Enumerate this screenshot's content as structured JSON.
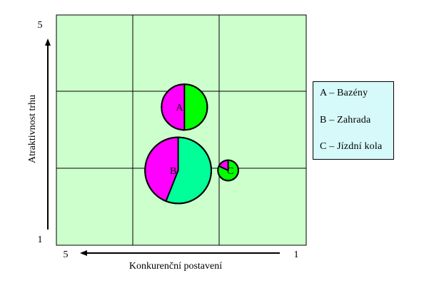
{
  "chart_data": {
    "type": "bubble-pie",
    "title": "",
    "xlabel": "Konkurenční postavení",
    "ylabel": "Atraktivnost trhu",
    "x_axis": {
      "start_label": "5",
      "end_label": "1",
      "direction": "decreasing-to-right"
    },
    "y_axis": {
      "start_label": "1",
      "end_label": "5",
      "direction": "increasing-up"
    },
    "grid": "3x3",
    "colors": {
      "plot_background": "#ccffcc",
      "pie_magenta": "#ff00ff",
      "pie_green_a": "#00ff00",
      "pie_green_b": "#00ff99",
      "pie_green_c": "#00ff00",
      "legend_background": "#d6fafa"
    },
    "bubbles": [
      {
        "label": "A",
        "x": 2.95,
        "y": 3.4,
        "size": 1.0,
        "magenta_share": 0.5,
        "green_color": "#00ff00"
      },
      {
        "label": "B",
        "x": 3.05,
        "y": 2.3,
        "size": 2.1,
        "magenta_share": 0.44,
        "green_color": "#00ff99"
      },
      {
        "label": "C",
        "x": 2.25,
        "y": 2.3,
        "size": 0.2,
        "magenta_share": 0.18,
        "green_color": "#00ff00"
      }
    ]
  },
  "legend": {
    "items": [
      "A – Bazény",
      "B – Zahrada",
      "C – Jízdní kola"
    ]
  }
}
